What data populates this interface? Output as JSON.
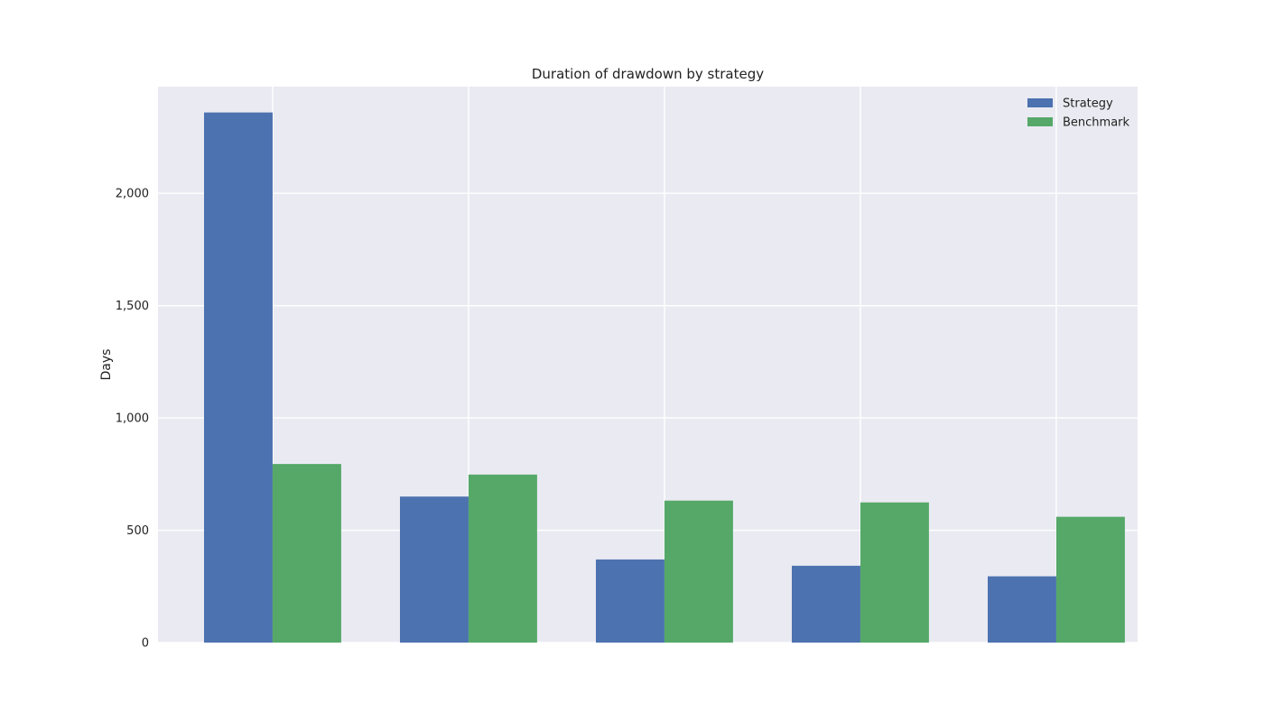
{
  "chart_data": {
    "type": "bar",
    "title": "Duration of drawdown by strategy",
    "xlabel": "",
    "ylabel": "Days",
    "ylim": [
      0,
      2475
    ],
    "yticks": [
      0,
      500,
      1000,
      1500,
      2000
    ],
    "ytick_labels": [
      "0",
      "500",
      "1,000",
      "1,500",
      "2,000"
    ],
    "categories": [
      "",
      "",
      "",
      "",
      ""
    ],
    "grid": true,
    "legend_position": "top-right",
    "series": [
      {
        "name": "Strategy",
        "color": "#4c72b0",
        "values": [
          2360,
          650,
          370,
          342,
          295
        ]
      },
      {
        "name": "Benchmark",
        "color": "#55a868",
        "values": [
          795,
          748,
          632,
          624,
          560
        ]
      }
    ]
  }
}
